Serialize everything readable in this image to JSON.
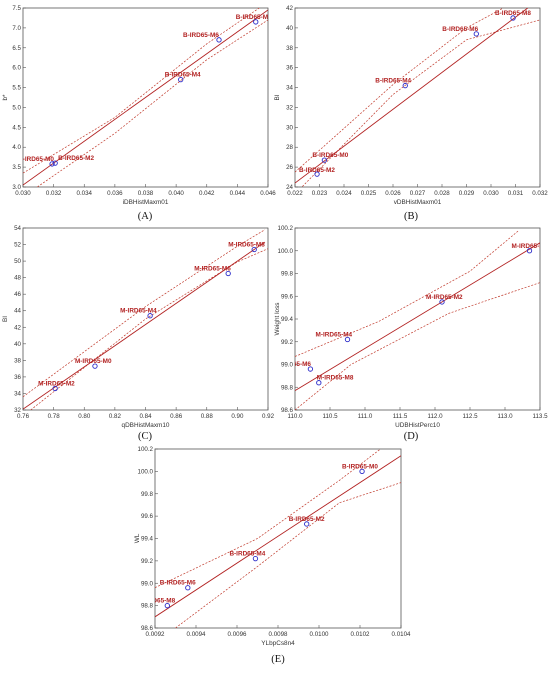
{
  "chart_data": [
    {
      "type": "scatter",
      "panel_label": "(A)",
      "xlabel": "iDBHistMaxm01",
      "ylabel": "b*",
      "xlim": [
        0.03,
        0.046
      ],
      "ylim": [
        3.0,
        7.5
      ],
      "xticks": [
        "0.030",
        "0.032",
        "0.034",
        "0.036",
        "0.038",
        "0.040",
        "0.042",
        "0.044",
        "0.046"
      ],
      "yticks": [
        "3.0",
        "3.5",
        "4.0",
        "4.5",
        "5.0",
        "5.5",
        "6.0",
        "6.5",
        "7.0",
        "7.5"
      ],
      "fit": {
        "x0": 0.03,
        "y0": 3.05,
        "x1": 0.046,
        "y1": 7.45
      },
      "ci_upper": [
        [
          0.03,
          3.35
        ],
        [
          0.036,
          4.75
        ],
        [
          0.042,
          6.6
        ],
        [
          0.046,
          7.65
        ]
      ],
      "ci_lower": [
        [
          0.03,
          2.75
        ],
        [
          0.036,
          4.35
        ],
        [
          0.042,
          6.2
        ],
        [
          0.046,
          7.2
        ]
      ],
      "points": [
        {
          "label": "B-IRD65-M0",
          "x": 0.0319,
          "y": 3.58
        },
        {
          "label": "B-IRD65-M2",
          "x": 0.0321,
          "y": 3.6
        },
        {
          "label": "B-IRD65-M4",
          "x": 0.0403,
          "y": 5.7
        },
        {
          "label": "B-IRD65-M6",
          "x": 0.0428,
          "y": 6.7
        },
        {
          "label": "B-IRD65-M8",
          "x": 0.0452,
          "y": 7.15
        }
      ]
    },
    {
      "type": "scatter",
      "panel_label": "(B)",
      "xlabel": "vDBHistMaxm01",
      "ylabel": "BI",
      "xlim": [
        0.022,
        0.032
      ],
      "ylim": [
        24,
        42
      ],
      "xticks": [
        "0.022",
        "0.023",
        "0.024",
        "0.025",
        "0.026",
        "0.027",
        "0.028",
        "0.029",
        "0.030",
        "0.031",
        "0.032"
      ],
      "yticks": [
        "24",
        "26",
        "28",
        "30",
        "32",
        "34",
        "36",
        "38",
        "40",
        "42"
      ],
      "fit": {
        "x0": 0.022,
        "y0": 24.4,
        "x1": 0.0315,
        "y1": 42.0
      },
      "ci_upper": [
        [
          0.022,
          25.5
        ],
        [
          0.026,
          34.3
        ],
        [
          0.029,
          40.0
        ],
        [
          0.0305,
          42.0
        ]
      ],
      "ci_lower": [
        [
          0.022,
          23.3
        ],
        [
          0.026,
          33.3
        ],
        [
          0.029,
          38.8
        ],
        [
          0.032,
          40.8
        ]
      ],
      "points": [
        {
          "label": "B-IRD65-M0",
          "x": 0.0232,
          "y": 26.7
        },
        {
          "label": "B-IRD65-M2",
          "x": 0.0229,
          "y": 25.3
        },
        {
          "label": "B-IRD65-M4",
          "x": 0.0265,
          "y": 34.2
        },
        {
          "label": "B-IRD65-M6",
          "x": 0.0294,
          "y": 39.4
        },
        {
          "label": "B-IRD65-M8",
          "x": 0.0309,
          "y": 41.0
        }
      ]
    },
    {
      "type": "scatter",
      "panel_label": "(C)",
      "xlabel": "qDBHistMaxm10",
      "ylabel": "BI",
      "xlim": [
        0.76,
        0.92
      ],
      "ylim": [
        32,
        54
      ],
      "xticks": [
        "0.76",
        "0.78",
        "0.80",
        "0.82",
        "0.84",
        "0.86",
        "0.88",
        "0.90",
        "0.92"
      ],
      "yticks": [
        "32",
        "34",
        "36",
        "38",
        "40",
        "42",
        "44",
        "46",
        "48",
        "50",
        "52",
        "54"
      ],
      "fit": {
        "x0": 0.76,
        "y0": 32.1,
        "x1": 0.918,
        "y1": 52.3
      },
      "ci_upper": [
        [
          0.76,
          33.6
        ],
        [
          0.84,
          44.5
        ],
        [
          0.9,
          51.8
        ],
        [
          0.918,
          53.8
        ]
      ],
      "ci_lower": [
        [
          0.765,
          32.0
        ],
        [
          0.84,
          43.0
        ],
        [
          0.9,
          49.9
        ],
        [
          0.92,
          51.5
        ]
      ],
      "points": [
        {
          "label": "M-IRD65-M2",
          "x": 0.781,
          "y": 34.6
        },
        {
          "label": "M-IRD65-M0",
          "x": 0.807,
          "y": 37.3
        },
        {
          "label": "M-IRD65-M4",
          "x": 0.843,
          "y": 43.4
        },
        {
          "label": "M-IRD65-M6",
          "x": 0.894,
          "y": 48.5
        },
        {
          "label": "M-IRD65-M8",
          "x": 0.911,
          "y": 51.4
        }
      ]
    },
    {
      "type": "scatter",
      "panel_label": "(D)",
      "xlabel": "UDBHistPerc10",
      "ylabel": "Weight loss",
      "xlim": [
        110.0,
        113.5
      ],
      "ylim": [
        98.6,
        100.2
      ],
      "xticks": [
        "110.0",
        "110.5",
        "111.0",
        "111.5",
        "112.0",
        "112.5",
        "113.0",
        "113.5"
      ],
      "yticks": [
        "98.6",
        "98.8",
        "99.0",
        "99.2",
        "99.4",
        "99.6",
        "99.8",
        "100.0",
        "100.2"
      ],
      "fit": {
        "x0": 110.0,
        "y0": 98.77,
        "x1": 113.5,
        "y1": 100.07
      },
      "ci_upper": [
        [
          110.0,
          99.07
        ],
        [
          111.2,
          99.38
        ],
        [
          112.5,
          99.82
        ],
        [
          113.2,
          100.18
        ]
      ],
      "ci_lower": [
        [
          110.0,
          98.6
        ],
        [
          110.8,
          99.0
        ],
        [
          112.2,
          99.45
        ],
        [
          113.5,
          99.72
        ]
      ],
      "points": [
        {
          "label": "M-IRD65-M0",
          "x": 113.35,
          "y": 100.0
        },
        {
          "label": "M-IRD65-M2",
          "x": 112.1,
          "y": 99.55
        },
        {
          "label": "M-IRD65-M4",
          "x": 110.75,
          "y": 99.22
        },
        {
          "label": "M-IRD65-M6",
          "x": 110.22,
          "y": 98.96
        },
        {
          "label": "M-IRD65-M8",
          "x": 110.34,
          "y": 98.84
        }
      ]
    },
    {
      "type": "scatter",
      "panel_label": "(E)",
      "xlabel": "YLbpCs8n4",
      "ylabel": "WL",
      "xlim": [
        0.0092,
        0.0104
      ],
      "ylim": [
        98.6,
        100.2
      ],
      "xticks": [
        "0.0092",
        "0.0094",
        "0.0096",
        "0.0098",
        "0.0100",
        "0.0102",
        "0.0104"
      ],
      "yticks": [
        "98.6",
        "98.8",
        "99.0",
        "99.2",
        "99.4",
        "99.6",
        "99.8",
        "100.0",
        "100.2"
      ],
      "fit": {
        "x0": 0.0092,
        "y0": 98.7,
        "x1": 0.0104,
        "y1": 100.14
      },
      "ci_upper": [
        [
          0.0092,
          98.96
        ],
        [
          0.0097,
          99.4
        ],
        [
          0.0101,
          99.92
        ],
        [
          0.0103,
          100.2
        ]
      ],
      "ci_lower": [
        [
          0.0093,
          98.6
        ],
        [
          0.0097,
          99.15
        ],
        [
          0.0101,
          99.72
        ],
        [
          0.0104,
          99.9
        ]
      ],
      "points": [
        {
          "label": "B-IRD65-M0",
          "x": 0.01021,
          "y": 100.0
        },
        {
          "label": "B-IRD65-M2",
          "x": 0.00994,
          "y": 99.53
        },
        {
          "label": "B-IRD65-M4",
          "x": 0.00969,
          "y": 99.22
        },
        {
          "label": "B-IRD65-M6",
          "x": 0.00936,
          "y": 98.96
        },
        {
          "label": "B-IRD65-M8",
          "x": 0.00926,
          "y": 98.8
        }
      ]
    }
  ]
}
